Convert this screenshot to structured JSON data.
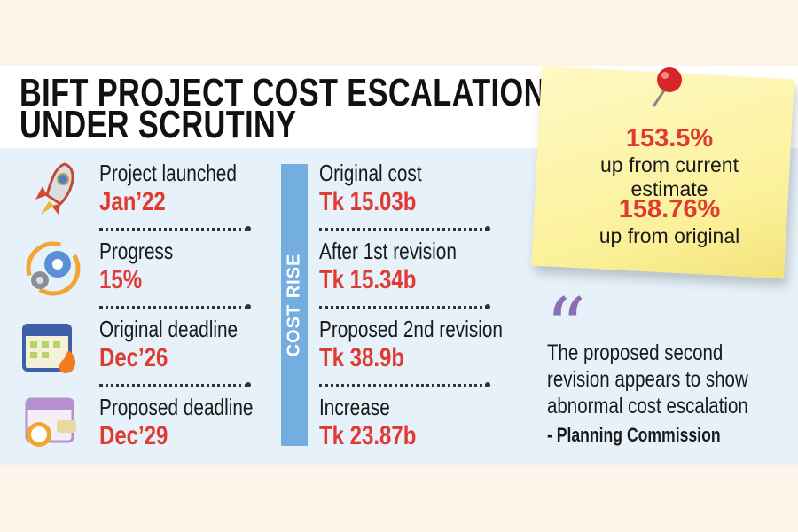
{
  "title": {
    "line1": "BIFT PROJECT COST ESCALATION",
    "line2": "UNDER SCRUTINY"
  },
  "timeline": [
    {
      "icon": "rocket-icon",
      "label": "Project launched",
      "value": "Jan’22"
    },
    {
      "icon": "gear-progress-icon",
      "label": "Progress",
      "value": "15%"
    },
    {
      "icon": "calendar-fire-icon",
      "label": "Original deadline",
      "value": "Dec’26"
    },
    {
      "icon": "calendar-clock-icon",
      "label": "Proposed deadline",
      "value": "Dec’29"
    }
  ],
  "cost_rise": {
    "label": "COST RISE",
    "items": [
      {
        "label": "Original cost",
        "value": "Tk 15.03b"
      },
      {
        "label": "After 1st revision",
        "value": "Tk 15.34b"
      },
      {
        "label": "Proposed 2nd revision",
        "value": "Tk 38.9b"
      },
      {
        "label": "Increase",
        "value": "Tk 23.87b"
      }
    ]
  },
  "note": {
    "stat1": "153.5%",
    "stat1_sub": "up from current estimate",
    "stat2": "158.76%",
    "stat2_sub": "up from original"
  },
  "quote": {
    "mark": "“",
    "text": "The proposed second revision appears to show abnormal cost escalation",
    "attribution": "- Planning Commission"
  }
}
